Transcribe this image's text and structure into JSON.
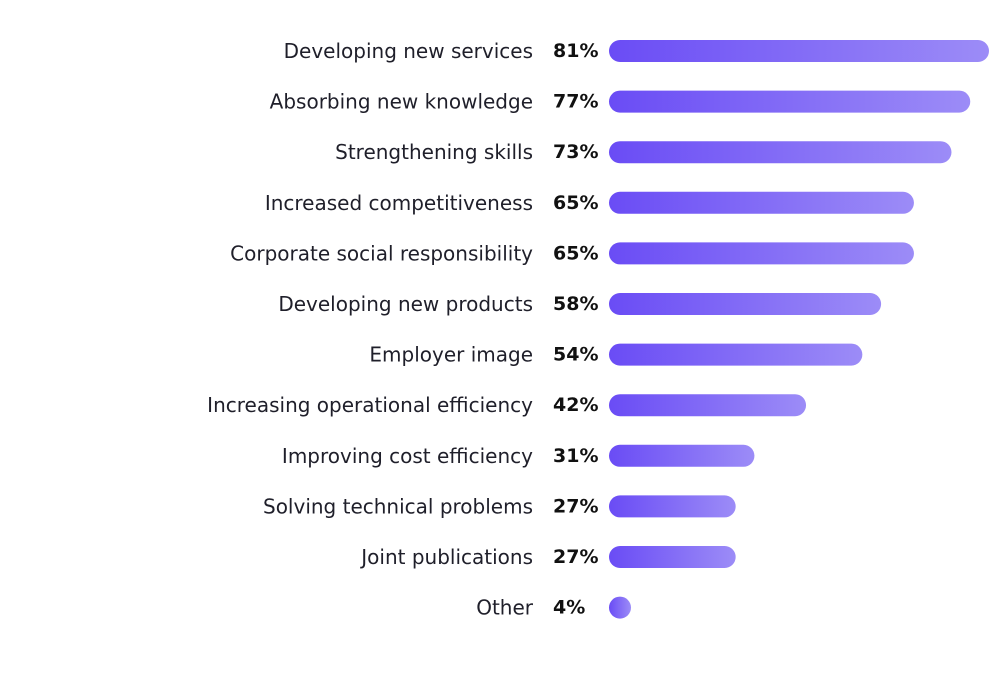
{
  "chart_data": {
    "type": "bar",
    "orientation": "horizontal",
    "categories": [
      "Developing new services",
      "Absorbing new knowledge",
      "Strengthening skills",
      "Increased competitiveness",
      "Corporate social responsibility",
      "Developing new products",
      "Employer image",
      "Increasing operational efficiency",
      "Improving cost efficiency",
      "Solving technical problems",
      "Joint publications",
      "Other"
    ],
    "values": [
      81,
      77,
      73,
      65,
      65,
      58,
      54,
      42,
      31,
      27,
      27,
      4
    ],
    "value_labels": [
      "81%",
      "77%",
      "73%",
      "65%",
      "65%",
      "58%",
      "54%",
      "42%",
      "31%",
      "27%",
      "27%",
      "4%"
    ],
    "unit": "%",
    "title": "",
    "xlabel": "",
    "ylabel": "",
    "xlim": [
      0,
      81
    ],
    "grid": false,
    "legend": "none",
    "colors": {
      "bar_start": "#6a4cf5",
      "bar_end": "#9c8cf7",
      "label": "#1f1f2a",
      "value": "#111111"
    }
  }
}
